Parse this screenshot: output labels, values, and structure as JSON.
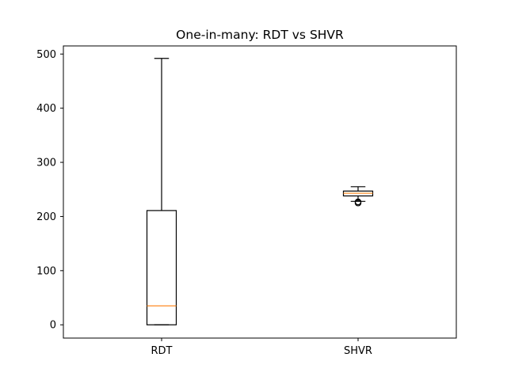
{
  "chart_data": {
    "type": "boxplot",
    "title": "One-in-many: RDT vs SHVR",
    "xlabel": "",
    "ylabel": "",
    "categories": [
      "RDT",
      "SHVR"
    ],
    "ylim": [
      -24.5,
      515
    ],
    "yticks": [
      0,
      100,
      200,
      300,
      400,
      500
    ],
    "grid": false,
    "boxes": [
      {
        "label": "RDT",
        "whisker_low": 0,
        "q1": 0,
        "median": 35,
        "q3": 211,
        "whisker_high": 492,
        "outliers": []
      },
      {
        "label": "SHVR",
        "whisker_low": 228,
        "q1": 238,
        "median": 243,
        "q3": 247,
        "whisker_high": 255,
        "outliers": [
          225,
          227
        ]
      }
    ],
    "colors": {
      "box": "#000000",
      "median": "#ff7f0e",
      "axes": "#000000"
    }
  }
}
